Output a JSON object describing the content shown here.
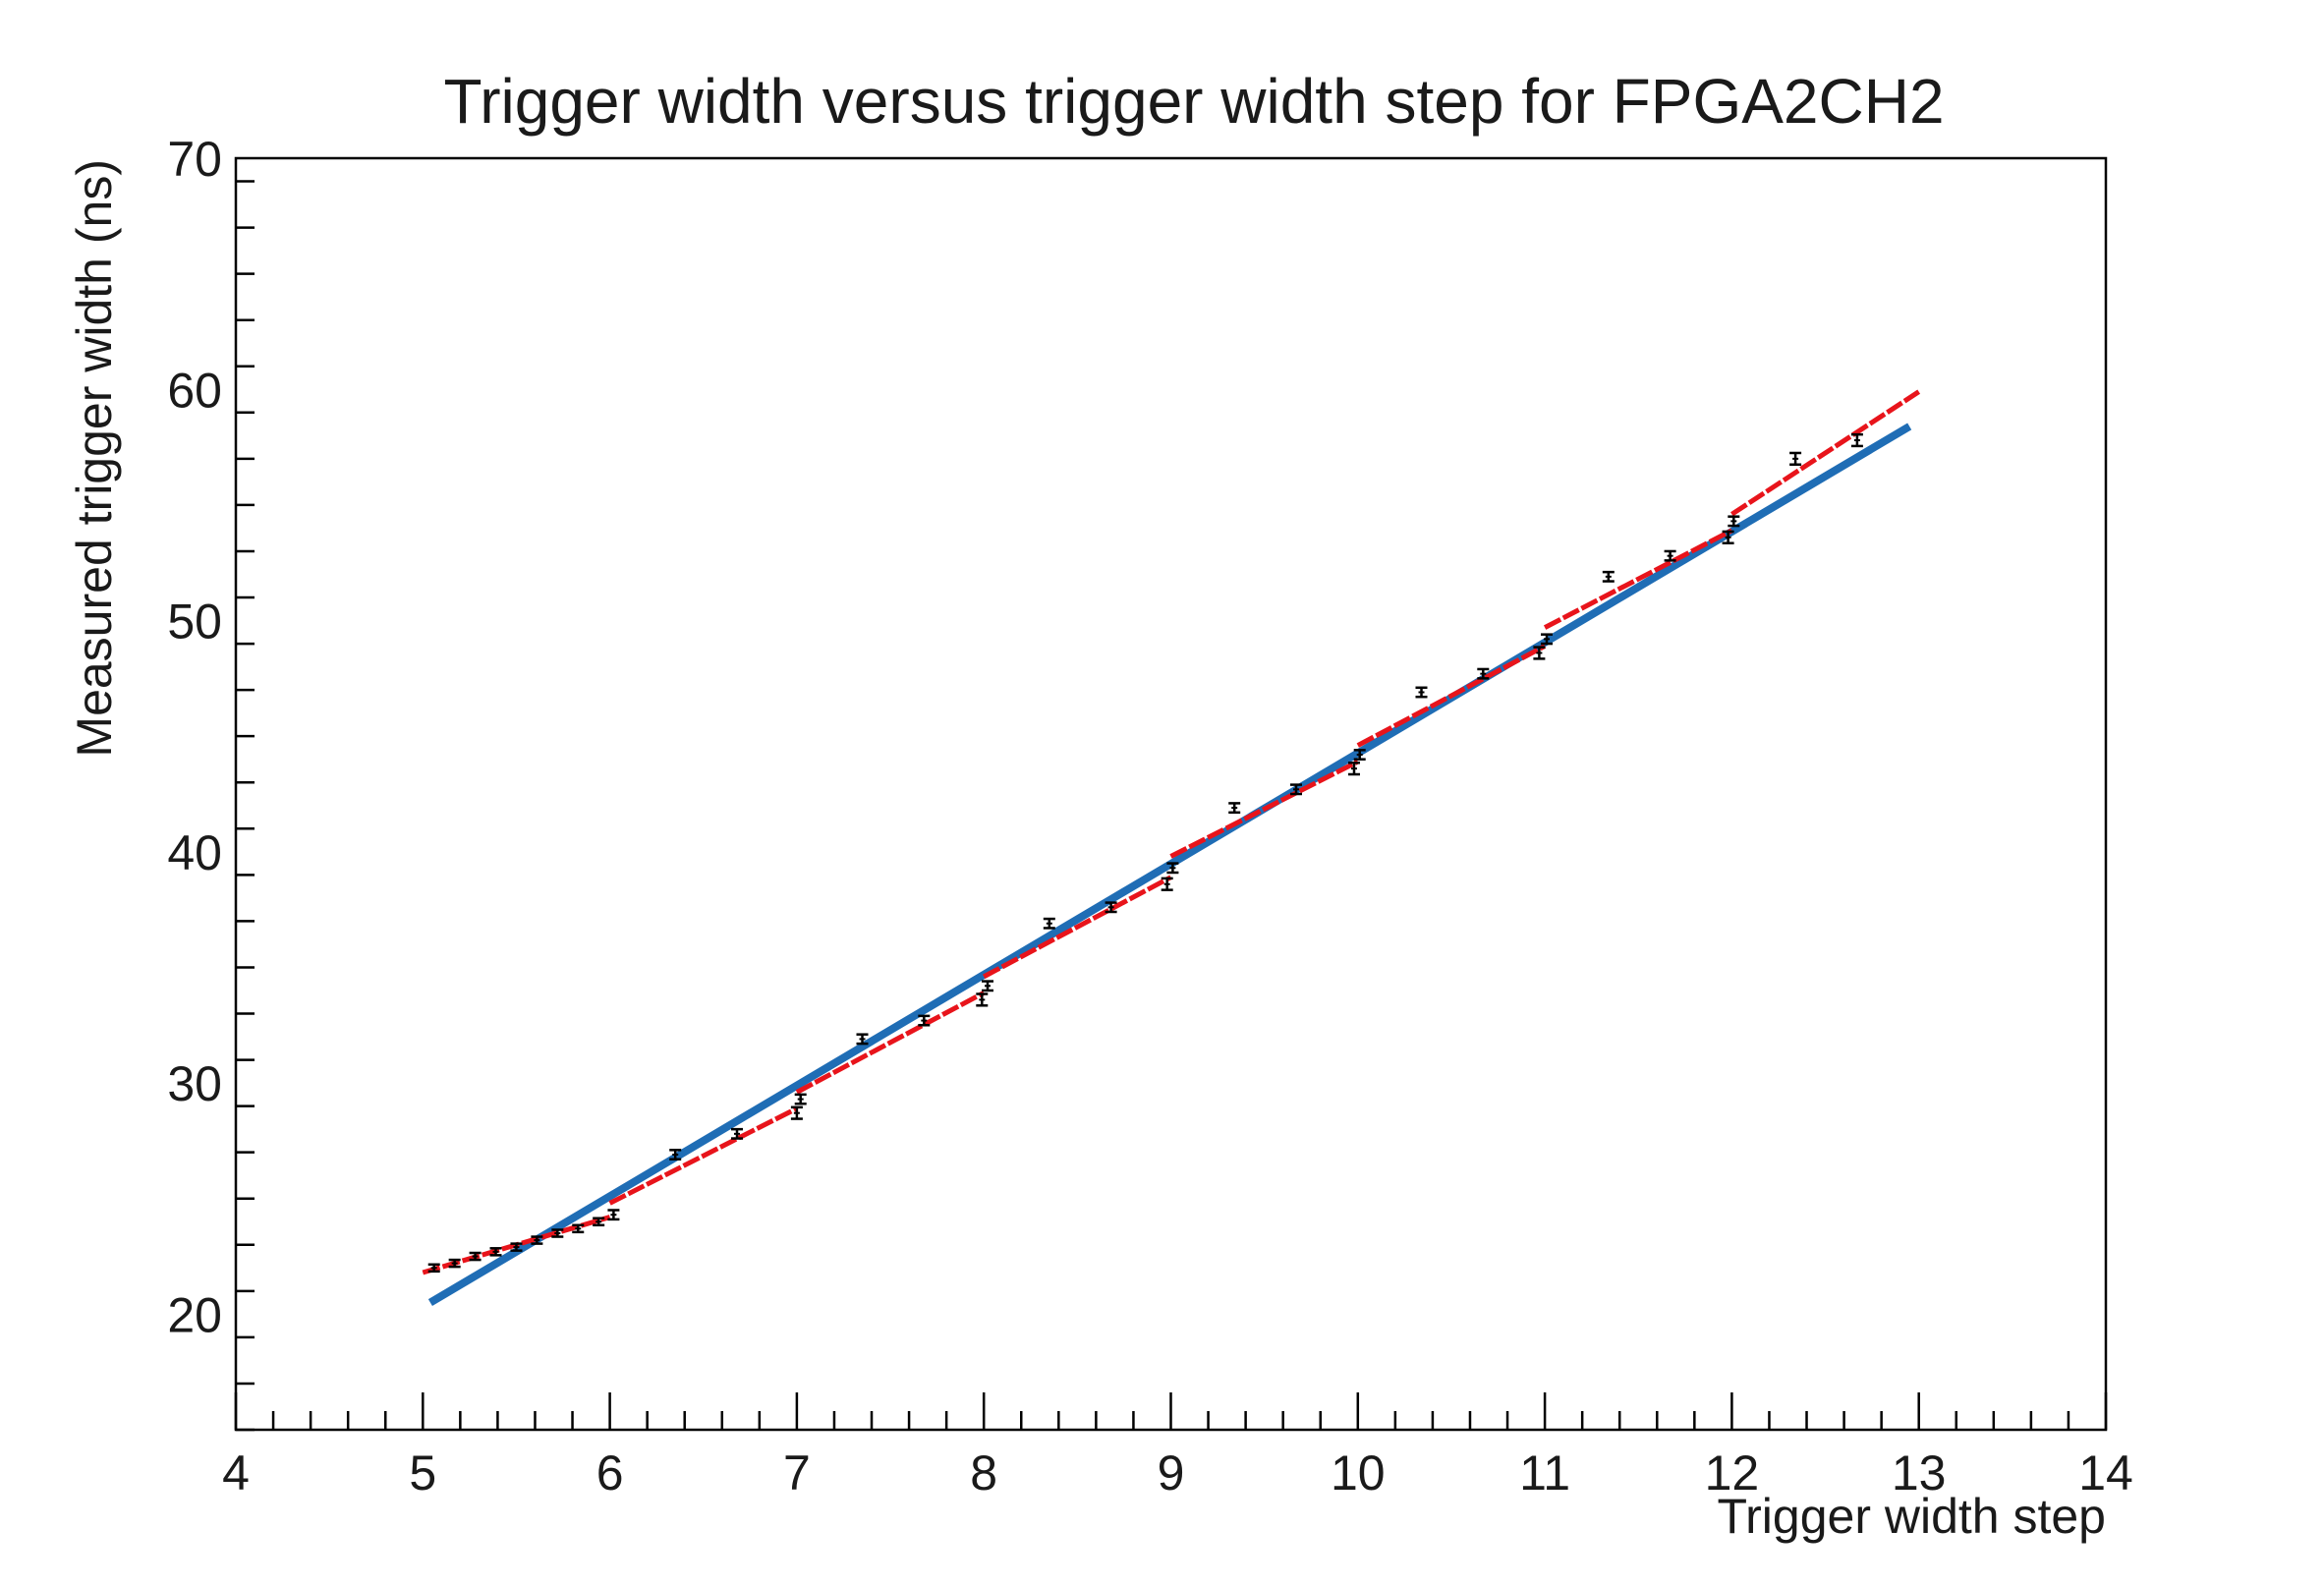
{
  "chart_data": {
    "type": "scatter",
    "title": "Trigger width versus trigger width step for FPGA2CH2",
    "xlabel": "Trigger width step",
    "ylabel": "Measured trigger width (ns)",
    "xlim": [
      4,
      14
    ],
    "ylim": [
      15,
      70
    ],
    "x_ticks": [
      "4",
      "5",
      "6",
      "7",
      "8",
      "9",
      "10",
      "11",
      "12",
      "13",
      "14"
    ],
    "y_ticks": [
      "20",
      "30",
      "40",
      "50",
      "60",
      "70"
    ],
    "grid": false,
    "legend": "none",
    "colors": {
      "points": "#000000",
      "segment_fit": "#e8141b",
      "global_fit": "#1f6db5",
      "axis": "#000000"
    },
    "series": [
      {
        "kind": "points",
        "points": [
          {
            "x": 5.06,
            "y": 22.0,
            "err": 0.15
          },
          {
            "x": 5.17,
            "y": 22.2,
            "err": 0.15
          },
          {
            "x": 5.28,
            "y": 22.5,
            "err": 0.15
          },
          {
            "x": 5.39,
            "y": 22.7,
            "err": 0.15
          },
          {
            "x": 5.5,
            "y": 22.9,
            "err": 0.15
          },
          {
            "x": 5.61,
            "y": 23.2,
            "err": 0.15
          },
          {
            "x": 5.72,
            "y": 23.5,
            "err": 0.15
          },
          {
            "x": 5.83,
            "y": 23.7,
            "err": 0.15
          },
          {
            "x": 5.94,
            "y": 24.0,
            "err": 0.15
          },
          {
            "x": 6.02,
            "y": 24.3,
            "err": 0.2
          },
          {
            "x": 6.35,
            "y": 26.9,
            "err": 0.2
          },
          {
            "x": 6.68,
            "y": 27.8,
            "err": 0.2
          },
          {
            "x": 7.0,
            "y": 28.7,
            "err": 0.25
          },
          {
            "x": 7.02,
            "y": 29.3,
            "err": 0.2
          },
          {
            "x": 7.35,
            "y": 31.9,
            "err": 0.2
          },
          {
            "x": 7.68,
            "y": 32.7,
            "err": 0.2
          },
          {
            "x": 7.99,
            "y": 33.6,
            "err": 0.25
          },
          {
            "x": 8.02,
            "y": 34.2,
            "err": 0.2
          },
          {
            "x": 8.35,
            "y": 36.9,
            "err": 0.2
          },
          {
            "x": 8.68,
            "y": 37.6,
            "err": 0.2
          },
          {
            "x": 8.98,
            "y": 38.6,
            "err": 0.25
          },
          {
            "x": 9.01,
            "y": 39.3,
            "err": 0.2
          },
          {
            "x": 9.34,
            "y": 41.9,
            "err": 0.2
          },
          {
            "x": 9.67,
            "y": 42.7,
            "err": 0.2
          },
          {
            "x": 9.98,
            "y": 43.6,
            "err": 0.25
          },
          {
            "x": 10.01,
            "y": 44.2,
            "err": 0.2
          },
          {
            "x": 10.34,
            "y": 46.9,
            "err": 0.2
          },
          {
            "x": 10.67,
            "y": 47.7,
            "err": 0.2
          },
          {
            "x": 10.97,
            "y": 48.6,
            "err": 0.25
          },
          {
            "x": 11.01,
            "y": 49.2,
            "err": 0.2
          },
          {
            "x": 11.34,
            "y": 51.9,
            "err": 0.2
          },
          {
            "x": 11.67,
            "y": 52.8,
            "err": 0.2
          },
          {
            "x": 11.98,
            "y": 53.6,
            "err": 0.25
          },
          {
            "x": 12.01,
            "y": 54.3,
            "err": 0.2
          },
          {
            "x": 12.34,
            "y": 57.0,
            "err": 0.25
          },
          {
            "x": 12.67,
            "y": 57.8,
            "err": 0.25
          }
        ]
      },
      {
        "kind": "segment-fit",
        "segments": [
          {
            "x": [
              5.0,
              6.0
            ],
            "y": [
              21.8,
              24.2
            ]
          },
          {
            "x": [
              6.0,
              7.0
            ],
            "y": [
              24.8,
              28.9
            ]
          },
          {
            "x": [
              7.0,
              8.0
            ],
            "y": [
              29.6,
              33.9
            ]
          },
          {
            "x": [
              8.0,
              9.0
            ],
            "y": [
              34.6,
              38.9
            ]
          },
          {
            "x": [
              9.0,
              10.0
            ],
            "y": [
              39.8,
              43.9
            ]
          },
          {
            "x": [
              10.0,
              11.0
            ],
            "y": [
              44.6,
              48.9
            ]
          },
          {
            "x": [
              11.0,
              12.0
            ],
            "y": [
              49.7,
              53.9
            ]
          },
          {
            "x": [
              12.0,
              13.0
            ],
            "y": [
              54.6,
              59.9
            ]
          }
        ]
      },
      {
        "kind": "global-fit",
        "x": [
          5.04,
          12.95
        ],
        "y": [
          20.5,
          58.4
        ]
      }
    ]
  }
}
